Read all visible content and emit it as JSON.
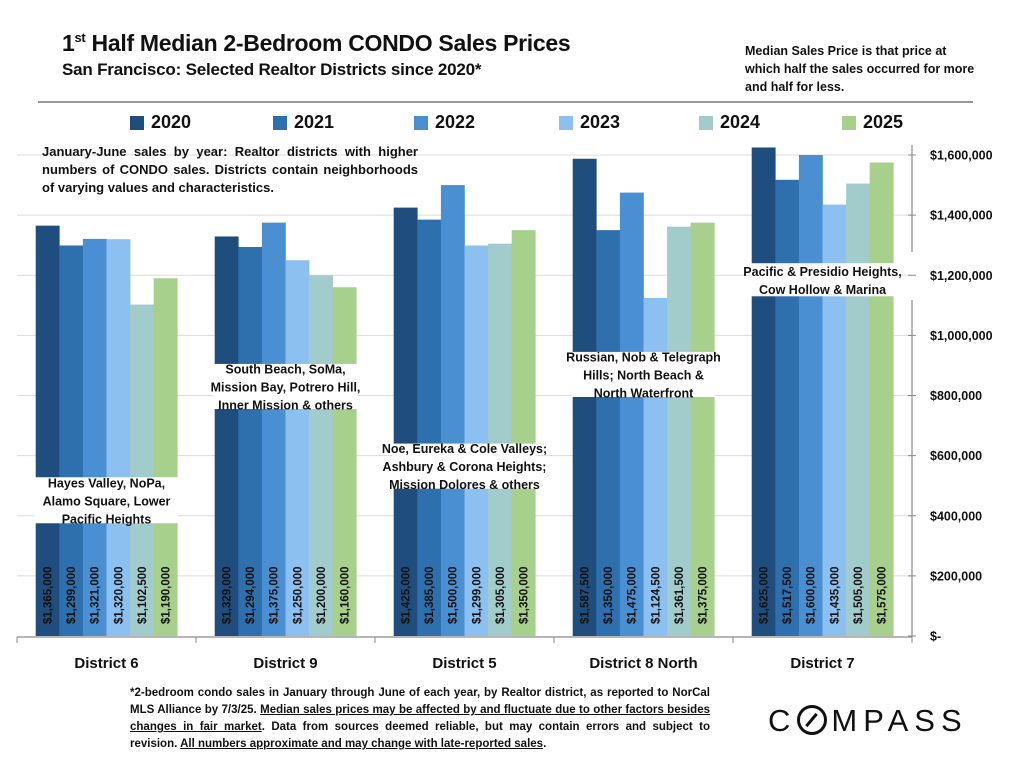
{
  "header": {
    "title_prefix": "1",
    "title_sup": "st",
    "title_rest": " Half Median 2-Bedroom CONDO Sales Prices",
    "subtitle": "San Francisco: Selected Realtor Districts since 2020*",
    "note": "Median Sales Price is that price at which half the sales occurred for more and half for less."
  },
  "description": "January-June sales by year: Realtor districts with higher numbers of CONDO sales. Districts contain neighborhoods of varying values and  characteristics.",
  "footnote": {
    "part1": "*2-bedroom condo sales in January through June of each year, by Realtor district, as reported to NorCal MLS Alliance by 7/3/25. ",
    "part2_underlined": "Median sales prices may be affected by and fluctuate due to other factors besides changes in fair market",
    "part3": ". Data from sources deemed reliable, but may contain errors and subject to revision. ",
    "part4_underlined": "All numbers approximate and may change with late-reported sales",
    "part5": "."
  },
  "logo": {
    "text_c": "C",
    "text_rest": "MPASS"
  },
  "colors": {
    "2020": "#1f4e7e",
    "2021": "#2e6fae",
    "2022": "#4a8fd2",
    "2023": "#8cc0f0",
    "2024": "#a2cbcb",
    "2025": "#a6d08b"
  },
  "chart_data": {
    "type": "bar",
    "title": "1st Half Median 2-Bedroom CONDO Sales Prices",
    "subtitle": "San Francisco: Selected Realtor Districts since 2020*",
    "xlabel": "",
    "ylabel": "",
    "ylim": [
      0,
      1600000
    ],
    "y_ticks": [
      0,
      200000,
      400000,
      600000,
      800000,
      1000000,
      1200000,
      1400000,
      1600000
    ],
    "y_tick_labels": [
      "$-",
      "$200,000",
      "$400,000",
      "$600,000",
      "$800,000",
      "$1,000,000",
      "$1,200,000",
      "$1,400,000",
      "$1,600,000"
    ],
    "y_axis_position": "right",
    "grid": true,
    "legend_position": "top",
    "categories": [
      "District 6",
      "District 9",
      "District 5",
      "District 8 North",
      "District 7"
    ],
    "neighborhoods": [
      "Hayes Valley, NoPa, Alamo Square, Lower Pacific Heights",
      "South Beach, SoMa, Mission Bay, Potrero Hill, Inner Mission & others",
      "Noe, Eureka & Cole Valleys; Ashbury & Corona Heights; Mission Dolores & others",
      "Russian, Nob & Telegraph Hills; North Beach & North Waterfront",
      "Pacific & Presidio Heights, Cow Hollow & Marina"
    ],
    "neighborhood_lines": [
      [
        "Hayes Valley, NoPa,",
        "Alamo Square, Lower",
        "Pacific Heights"
      ],
      [
        "South Beach, SoMa,",
        "Mission Bay, Potrero Hill,",
        "Inner Mission & others"
      ],
      [
        "Noe, Eureka & Cole Valleys;",
        "Ashbury & Corona Heights;",
        "Mission Dolores & others"
      ],
      [
        "Russian, Nob & Telegraph",
        "Hills; North Beach &",
        "North Waterfront"
      ],
      [
        "Pacific & Presidio Heights,",
        "Cow Hollow & Marina"
      ]
    ],
    "series": [
      {
        "name": "2020",
        "values": [
          1365000,
          1329000,
          1425000,
          1587500,
          1625000
        ],
        "labels": [
          "$1,365,000",
          "$1,329,000",
          "$1,425,000",
          "$1,587,500",
          "$1,625,000"
        ]
      },
      {
        "name": "2021",
        "values": [
          1299000,
          1294000,
          1385000,
          1350000,
          1517500
        ],
        "labels": [
          "$1,299,000",
          "$1,294,000",
          "$1,385,000",
          "$1,350,000",
          "$1,517,500"
        ]
      },
      {
        "name": "2022",
        "values": [
          1321000,
          1375000,
          1500000,
          1475000,
          1600000
        ],
        "labels": [
          "$1,321,000",
          "$1,375,000",
          "$1,500,000",
          "$1,475,000",
          "$1,600,000"
        ]
      },
      {
        "name": "2023",
        "values": [
          1320000,
          1250000,
          1299000,
          1124500,
          1435000
        ],
        "labels": [
          "$1,320,000",
          "$1,250,000",
          "$1,299,000",
          "$1,124,500",
          "$1,435,000"
        ]
      },
      {
        "name": "2024",
        "values": [
          1102500,
          1200000,
          1305000,
          1361500,
          1505000
        ],
        "labels": [
          "$1,102,500",
          "$1,200,000",
          "$1,305,000",
          "$1,361,500",
          "$1,505,000"
        ]
      },
      {
        "name": "2025",
        "values": [
          1190000,
          1160000,
          1350000,
          1375000,
          1575000
        ],
        "labels": [
          "$1,190,000",
          "$1,160,000",
          "$1,350,000",
          "$1,375,000",
          "$1,575,000"
        ]
      }
    ],
    "annotation_box_values": [
      [
        375000,
        528000
      ],
      [
        755000,
        905000
      ],
      [
        490000,
        640000
      ],
      [
        795000,
        945000
      ],
      [
        1130000,
        1240000
      ]
    ]
  }
}
